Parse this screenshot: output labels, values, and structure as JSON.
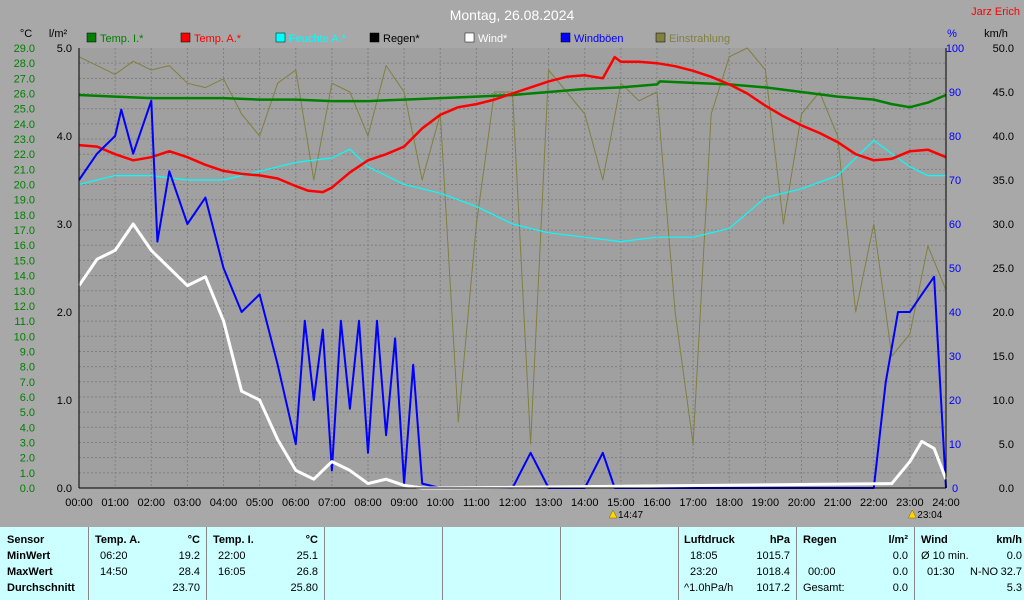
{
  "header": {
    "title": "Montag, 26.08.2024",
    "author": "Jarz Erich"
  },
  "axes": {
    "left_temp_unit": "°C",
    "left_rain_unit": "l/m²",
    "right_pct_unit": "%",
    "right_wind_unit": "km/h",
    "temp_ticks": [
      "29.0",
      "28.0",
      "27.0",
      "26.0",
      "25.0",
      "24.0",
      "23.0",
      "22.0",
      "21.0",
      "20.0",
      "19.0",
      "18.0",
      "17.0",
      "16.0",
      "15.0",
      "14.0",
      "13.0",
      "12.0",
      "11.0",
      "10.0",
      "9.0",
      "8.0",
      "7.0",
      "6.0",
      "5.0",
      "4.0",
      "3.0",
      "2.0",
      "1.0",
      "0.0"
    ],
    "rain_ticks": [
      "5.0",
      "4.0",
      "3.0",
      "2.0",
      "1.0",
      "0.0"
    ],
    "pct_ticks": [
      "100",
      "90",
      "80",
      "70",
      "60",
      "50",
      "40",
      "30",
      "20",
      "10",
      "0"
    ],
    "wind_ticks": [
      "50.0",
      "45.0",
      "40.0",
      "35.0",
      "30.0",
      "25.0",
      "20.0",
      "15.0",
      "10.0",
      "5.0",
      "0.0"
    ],
    "time_ticks": [
      "00:00",
      "01:00",
      "02:00",
      "03:00",
      "04:00",
      "05:00",
      "06:00",
      "07:00",
      "08:00",
      "09:00",
      "10:00",
      "11:00",
      "12:00",
      "13:00",
      "14:00",
      "15:00",
      "16:00",
      "17:00",
      "18:00",
      "19:00",
      "20:00",
      "21:00",
      "22:00",
      "23:00",
      "24:00"
    ]
  },
  "legend": [
    {
      "label": "Temp. I.*",
      "color": "#008000"
    },
    {
      "label": "Temp. A.*",
      "color": "#ff0000"
    },
    {
      "label": "Feuchte A.*",
      "color": "#00ffff"
    },
    {
      "label": "Regen*",
      "color": "#000000"
    },
    {
      "label": "Wind*",
      "color": "#ffffff"
    },
    {
      "label": "Windböen",
      "color": "#0000ff"
    },
    {
      "label": "Einstrahlung",
      "color": "#808040"
    }
  ],
  "markers": [
    {
      "time": "14:47",
      "label": "14:47"
    },
    {
      "time": "23:04",
      "label": "23:04"
    }
  ],
  "chart_data": {
    "type": "line",
    "title": "Montag, 26.08.2024",
    "x_range_hours": [
      0,
      24
    ],
    "temp_ylim": [
      0,
      29
    ],
    "rain_ylim": [
      0,
      5
    ],
    "pct_ylim": [
      0,
      100
    ],
    "wind_ylim": [
      0,
      50
    ],
    "series": [
      {
        "name": "Temp. I.*",
        "axis": "temp",
        "color": "#008000",
        "x": [
          0,
          1,
          2,
          3,
          4,
          5,
          6,
          7,
          8,
          9,
          10,
          11,
          12,
          13,
          14,
          15,
          16,
          16.08,
          17,
          18,
          19,
          20,
          21,
          22,
          22.5,
          23,
          23.5,
          24
        ],
        "y": [
          25.9,
          25.8,
          25.7,
          25.7,
          25.7,
          25.6,
          25.6,
          25.5,
          25.5,
          25.6,
          25.7,
          25.8,
          25.9,
          26.1,
          26.3,
          26.4,
          26.6,
          26.8,
          26.7,
          26.6,
          26.4,
          26.1,
          25.8,
          25.6,
          25.3,
          25.1,
          25.4,
          25.9
        ]
      },
      {
        "name": "Temp. A.*",
        "axis": "temp",
        "color": "#ff0000",
        "x": [
          0,
          0.5,
          1,
          1.5,
          2,
          2.5,
          3,
          3.5,
          4,
          4.5,
          5,
          5.5,
          6,
          6.33,
          6.75,
          7,
          7.5,
          8,
          8.5,
          9,
          9.5,
          10,
          10.5,
          11,
          11.5,
          12,
          12.5,
          13,
          13.5,
          14,
          14.5,
          14.83,
          15,
          15.5,
          16,
          16.5,
          17,
          17.5,
          18,
          18.5,
          19,
          19.5,
          20,
          20.5,
          21,
          21.5,
          22,
          22.5,
          23,
          23.5,
          24
        ],
        "y": [
          22.6,
          22.5,
          22.0,
          21.6,
          21.8,
          22.2,
          21.8,
          21.3,
          20.9,
          20.7,
          20.6,
          20.4,
          19.9,
          19.6,
          19.5,
          19.8,
          20.8,
          21.6,
          22.0,
          22.5,
          23.7,
          24.6,
          25.1,
          25.3,
          25.6,
          26.0,
          26.4,
          26.8,
          27.1,
          27.2,
          27.0,
          28.4,
          28.1,
          28.1,
          28.0,
          27.8,
          27.5,
          27.1,
          26.6,
          26.0,
          25.2,
          24.5,
          23.9,
          23.4,
          22.8,
          22.0,
          21.6,
          21.7,
          22.2,
          22.3,
          21.8
        ]
      },
      {
        "name": "Feuchte A.*",
        "axis": "pct",
        "color": "#00ffff",
        "x": [
          0,
          1,
          2,
          3,
          4,
          5,
          6,
          7,
          7.5,
          8,
          9,
          10,
          11,
          12,
          13,
          14,
          15,
          16,
          17,
          18,
          19,
          20,
          21,
          22,
          22.5,
          23,
          23.5,
          24
        ],
        "y": [
          69,
          71,
          71,
          70,
          70,
          72,
          74,
          75,
          77,
          73,
          69,
          67,
          64,
          60,
          58,
          57,
          56,
          57,
          57,
          59,
          66,
          68,
          71,
          79,
          76,
          73,
          71,
          71
        ]
      },
      {
        "name": "Wind*",
        "axis": "wind",
        "color": "#ffffff",
        "x": [
          0,
          0.5,
          1,
          1.5,
          2,
          2.5,
          3,
          3.5,
          4,
          4.5,
          5,
          5.5,
          6,
          6.5,
          7,
          7.5,
          8,
          8.5,
          9,
          9.5,
          10,
          22.5,
          23,
          23.33,
          23.67,
          24
        ],
        "y": [
          23.0,
          26.0,
          27.0,
          30.0,
          27.0,
          25.0,
          23.0,
          24.0,
          19.0,
          11.0,
          10.0,
          5.5,
          2.0,
          1.0,
          3.0,
          2.0,
          0.5,
          1.0,
          0.3,
          0,
          0,
          0.5,
          3.0,
          5.3,
          4.5,
          1.0
        ]
      },
      {
        "name": "Windböen",
        "axis": "wind",
        "color": "#0000ff",
        "x": [
          0,
          0.5,
          1,
          1.17,
          1.5,
          2,
          2.17,
          2.5,
          3,
          3.5,
          4,
          4.5,
          5,
          5.5,
          6,
          6.25,
          6.5,
          6.75,
          7,
          7.25,
          7.5,
          7.75,
          8,
          8.25,
          8.5,
          8.75,
          9,
          9.25,
          9.5,
          10,
          12,
          12.5,
          13,
          14,
          14.5,
          14.83,
          15,
          22,
          22.33,
          22.67,
          23,
          23.33,
          23.67,
          24
        ],
        "y": [
          35.0,
          38.0,
          40.0,
          43.0,
          38.0,
          44.0,
          28.0,
          36.0,
          30.0,
          33.0,
          25.0,
          20.0,
          22.0,
          14.0,
          5.0,
          19.0,
          10.0,
          18.0,
          2.0,
          19.0,
          9.0,
          19.0,
          4.0,
          19.0,
          6.0,
          17.0,
          0.5,
          14.0,
          0.5,
          0,
          0,
          4.0,
          0,
          0,
          4.0,
          0,
          0,
          0,
          12.0,
          20.0,
          20.0,
          22.0,
          24.0,
          0
        ]
      },
      {
        "name": "Einstrahlung",
        "axis": "pct",
        "color": "#808040",
        "x": [
          0,
          0.5,
          1,
          1.5,
          2,
          2.5,
          3,
          3.5,
          4,
          4.5,
          5,
          5.5,
          6,
          6.5,
          7,
          7.5,
          8,
          8.5,
          9,
          9.5,
          10,
          10.5,
          11,
          11.5,
          12,
          12.5,
          13,
          13.5,
          14,
          14.5,
          15,
          15.5,
          16,
          16.5,
          17,
          17.5,
          18,
          18.5,
          19,
          19.5,
          20,
          20.5,
          21,
          21.5,
          22,
          22.5,
          23,
          23.5,
          24
        ],
        "y": [
          98,
          96,
          94,
          97,
          95,
          96,
          92,
          91,
          93,
          85,
          80,
          92,
          95,
          70,
          92,
          90,
          80,
          96,
          90,
          70,
          85,
          15,
          60,
          90,
          90,
          10,
          95,
          90,
          85,
          70,
          92,
          88,
          90,
          40,
          10,
          85,
          98,
          100,
          95,
          60,
          85,
          90,
          80,
          40,
          60,
          30,
          35,
          55,
          45
        ]
      },
      {
        "name": "Regen*",
        "axis": "rain",
        "color": "#000000",
        "x": [
          0,
          24
        ],
        "y": [
          0,
          0
        ]
      }
    ]
  },
  "stats": {
    "sensor": {
      "title": "Sensor",
      "rows": [
        "MinWert",
        "MaxWert",
        "Durchschnitt"
      ]
    },
    "temp_a": {
      "title": "Temp. A.",
      "unit": "°C",
      "min_time": "06:20",
      "min_val": "19.2",
      "max_time": "14:50",
      "max_val": "28.4",
      "avg": "23.70"
    },
    "temp_i": {
      "title": "Temp. I.",
      "unit": "°C",
      "min_time": "22:00",
      "min_val": "25.1",
      "max_time": "16:05",
      "max_val": "26.8",
      "avg": "25.80"
    },
    "pressure": {
      "title": "Luftdruck",
      "unit": "hPa",
      "min_time": "18:05",
      "min_val": "1015.7",
      "max_time": "23:20",
      "max_val": "1018.4",
      "trend_label": "^1.0hPa/h",
      "trend_val": "1017.2"
    },
    "rain": {
      "title": "Regen",
      "unit": "l/m²",
      "max_time": "00:00",
      "max_val": "0.0",
      "total_label": "Gesamt:",
      "total_val": "0.0",
      "min_val": "0.0"
    },
    "wind": {
      "title": "Wind",
      "unit": "km/h",
      "avg_label": "Ø 10 min.",
      "avg_val": "0.0",
      "max_time": "01:30",
      "max_dir": "N-NO",
      "max_val": "32.7",
      "avg": "5.3"
    }
  }
}
